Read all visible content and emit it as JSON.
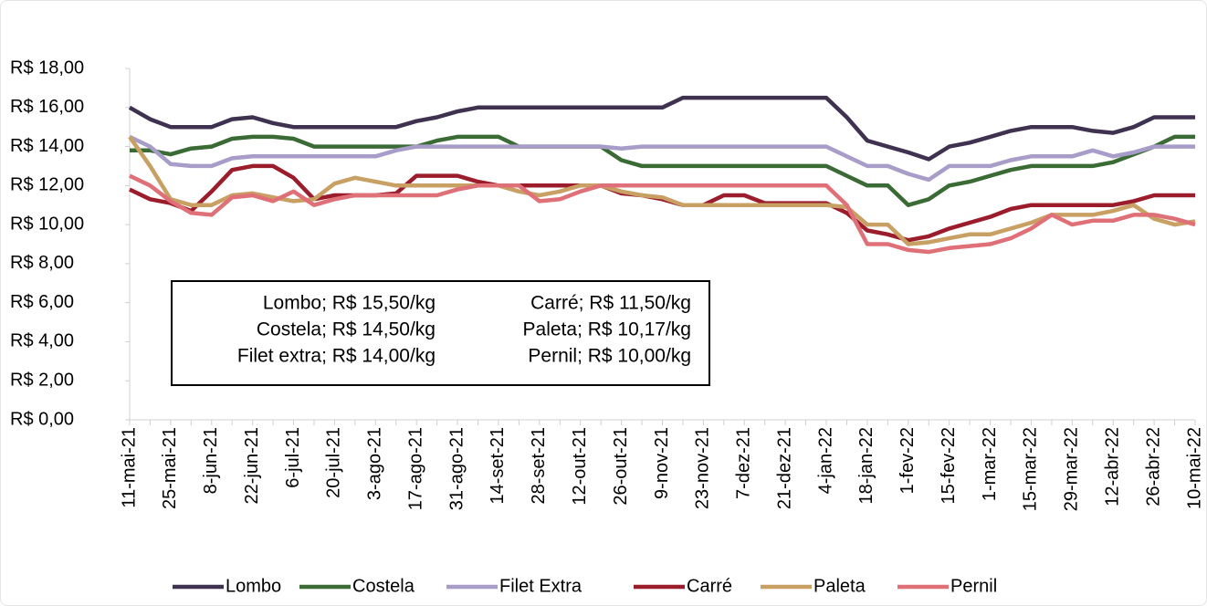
{
  "chart_data": {
    "type": "line",
    "categories": [
      "11-mai-21",
      null,
      "25-mai-21",
      null,
      "8-jun-21",
      null,
      "22-jun-21",
      null,
      "6-jul-21",
      null,
      "20-jul-21",
      null,
      "3-ago-21",
      null,
      "17-ago-21",
      null,
      "31-ago-21",
      null,
      "14-set-21",
      null,
      "28-set-21",
      null,
      "12-out-21",
      null,
      "26-out-21",
      null,
      "9-nov-21",
      null,
      "23-nov-21",
      null,
      "7-dez-21",
      null,
      "21-dez-21",
      null,
      "4-jan-22",
      null,
      "18-jan-22",
      null,
      "1-fev-22",
      null,
      "15-fev-22",
      null,
      "1-mar-22",
      null,
      "15-mar-22",
      null,
      "29-mar-22",
      null,
      "12-abr-22",
      null,
      "26-abr-22",
      null,
      "10-mai-22"
    ],
    "series": [
      {
        "name": "Lombo",
        "color": "#3f3150",
        "values": [
          16.0,
          15.4,
          15.0,
          15.0,
          15.0,
          15.4,
          15.5,
          15.2,
          15.0,
          15.0,
          15.0,
          15.0,
          15.0,
          15.0,
          15.3,
          15.5,
          15.8,
          16.0,
          16.0,
          16.0,
          16.0,
          16.0,
          16.0,
          16.0,
          16.0,
          16.0,
          16.0,
          16.5,
          16.5,
          16.5,
          16.5,
          16.5,
          16.5,
          16.5,
          16.5,
          15.5,
          14.3,
          14.0,
          13.7,
          13.35,
          14.0,
          14.2,
          14.5,
          14.8,
          15.0,
          15.0,
          15.0,
          14.8,
          14.7,
          15.0,
          15.5,
          15.5,
          15.5
        ]
      },
      {
        "name": "Costela",
        "color": "#3a6b35",
        "values": [
          13.8,
          13.8,
          13.6,
          13.9,
          14.0,
          14.4,
          14.5,
          14.5,
          14.4,
          14.0,
          14.0,
          14.0,
          14.0,
          14.0,
          14.0,
          14.3,
          14.5,
          14.5,
          14.5,
          14.0,
          14.0,
          14.0,
          14.0,
          14.0,
          13.3,
          13.0,
          13.0,
          13.0,
          13.0,
          13.0,
          13.0,
          13.0,
          13.0,
          13.0,
          13.0,
          12.5,
          12.0,
          12.0,
          11.0,
          11.3,
          12.0,
          12.2,
          12.5,
          12.8,
          13.0,
          13.0,
          13.0,
          13.0,
          13.2,
          13.6,
          14.0,
          14.5,
          14.5
        ]
      },
      {
        "name": "Filet Extra",
        "color": "#a89cc8",
        "values": [
          14.5,
          14.0,
          13.1,
          13.0,
          13.0,
          13.4,
          13.5,
          13.5,
          13.5,
          13.5,
          13.5,
          13.5,
          13.5,
          13.8,
          14.0,
          14.0,
          14.0,
          14.0,
          14.0,
          14.0,
          14.0,
          14.0,
          14.0,
          14.0,
          13.9,
          14.0,
          14.0,
          14.0,
          14.0,
          14.0,
          14.0,
          14.0,
          14.0,
          14.0,
          14.0,
          13.5,
          13.0,
          13.0,
          12.6,
          12.3,
          13.0,
          13.0,
          13.0,
          13.3,
          13.5,
          13.5,
          13.5,
          13.8,
          13.5,
          13.7,
          14.0,
          14.0,
          14.0
        ]
      },
      {
        "name": "Carré",
        "color": "#9b1c2a",
        "values": [
          11.8,
          11.3,
          11.1,
          10.7,
          11.7,
          12.8,
          13.0,
          13.0,
          12.4,
          11.3,
          11.5,
          11.5,
          11.5,
          11.6,
          12.5,
          12.5,
          12.5,
          12.2,
          12.0,
          12.0,
          12.0,
          12.0,
          12.0,
          12.0,
          11.6,
          11.5,
          11.3,
          11.0,
          11.0,
          11.5,
          11.5,
          11.1,
          11.1,
          11.1,
          11.1,
          10.6,
          9.7,
          9.5,
          9.2,
          9.4,
          9.8,
          10.1,
          10.4,
          10.8,
          11.0,
          11.0,
          11.0,
          11.0,
          11.0,
          11.2,
          11.5,
          11.5,
          11.5
        ]
      },
      {
        "name": "Paleta",
        "color": "#c9a063",
        "values": [
          14.5,
          13.0,
          11.3,
          11.0,
          11.0,
          11.5,
          11.6,
          11.4,
          11.2,
          11.3,
          12.1,
          12.4,
          12.2,
          12.0,
          12.0,
          12.0,
          12.0,
          12.0,
          12.0,
          11.7,
          11.5,
          11.7,
          12.0,
          12.0,
          11.7,
          11.5,
          11.4,
          11.0,
          11.0,
          11.0,
          11.0,
          11.0,
          11.0,
          11.0,
          11.0,
          10.9,
          10.0,
          10.0,
          9.0,
          9.1,
          9.3,
          9.5,
          9.5,
          9.8,
          10.1,
          10.5,
          10.5,
          10.5,
          10.7,
          11.0,
          10.3,
          10.0,
          10.17
        ]
      },
      {
        "name": "Pernil",
        "color": "#e07078",
        "values": [
          12.5,
          12.0,
          11.2,
          10.6,
          10.5,
          11.4,
          11.5,
          11.2,
          11.7,
          11.0,
          11.3,
          11.5,
          11.5,
          11.5,
          11.5,
          11.5,
          11.8,
          12.0,
          12.0,
          12.0,
          11.2,
          11.3,
          11.7,
          12.0,
          12.0,
          12.0,
          12.0,
          12.0,
          12.0,
          12.0,
          12.0,
          12.0,
          12.0,
          12.0,
          12.0,
          11.0,
          9.0,
          9.0,
          8.7,
          8.6,
          8.8,
          8.9,
          9.0,
          9.3,
          9.8,
          10.5,
          10.0,
          10.2,
          10.2,
          10.5,
          10.5,
          10.3,
          10.0
        ]
      }
    ],
    "ylim": [
      0,
      18
    ],
    "yticks": [
      {
        "value": 0,
        "label": "R$ 0,00"
      },
      {
        "value": 2,
        "label": "R$ 2,00"
      },
      {
        "value": 4,
        "label": "R$ 4,00"
      },
      {
        "value": 6,
        "label": "R$ 6,00"
      },
      {
        "value": 8,
        "label": "R$ 8,00"
      },
      {
        "value": 10,
        "label": "R$ 10,00"
      },
      {
        "value": 12,
        "label": "R$ 12,00"
      },
      {
        "value": 14,
        "label": "R$ 14,00"
      },
      {
        "value": 16,
        "label": "R$ 16,00"
      },
      {
        "value": 18,
        "label": "R$ 18,00"
      }
    ],
    "annotations": [
      [
        "Lombo; R$ 15,50/kg",
        "Costela; R$ 14,50/kg",
        "Filet extra; R$ 14,00/kg"
      ],
      [
        "Carré; R$ 11,50/kg",
        "Paleta; R$ 10,17/kg",
        "Pernil; R$ 10,00/kg"
      ]
    ],
    "legend": "bottom"
  }
}
